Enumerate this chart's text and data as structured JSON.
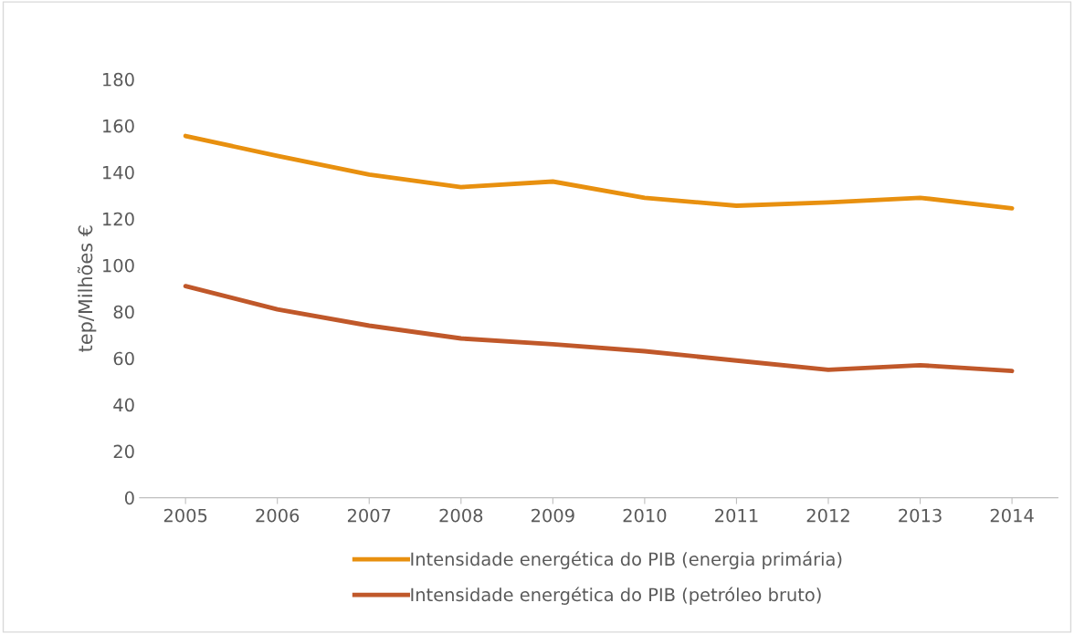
{
  "chart_data": {
    "type": "line",
    "ylabel": "tep/Milhões €",
    "categories": [
      "2005",
      "2006",
      "2007",
      "2008",
      "2009",
      "2010",
      "2011",
      "2012",
      "2013",
      "2014"
    ],
    "series": [
      {
        "name": "Intensidade energética do PIB (energia primária)",
        "color": "#e8900f",
        "values": [
          155.6,
          147,
          139,
          133.6,
          136,
          129,
          125.6,
          127,
          129,
          124.5
        ]
      },
      {
        "name": "Intensidade energética do PIB (petróleo bruto)",
        "color": "#c0582a",
        "values": [
          91,
          81,
          74,
          68.5,
          66,
          63,
          59,
          55,
          57,
          54.5
        ]
      }
    ],
    "ylim": [
      0,
      180
    ],
    "yticks": [
      0,
      20,
      40,
      60,
      80,
      100,
      120,
      140,
      160,
      180
    ],
    "grid": false,
    "legend": "bottom",
    "marker": "none",
    "line_style": "solid"
  }
}
